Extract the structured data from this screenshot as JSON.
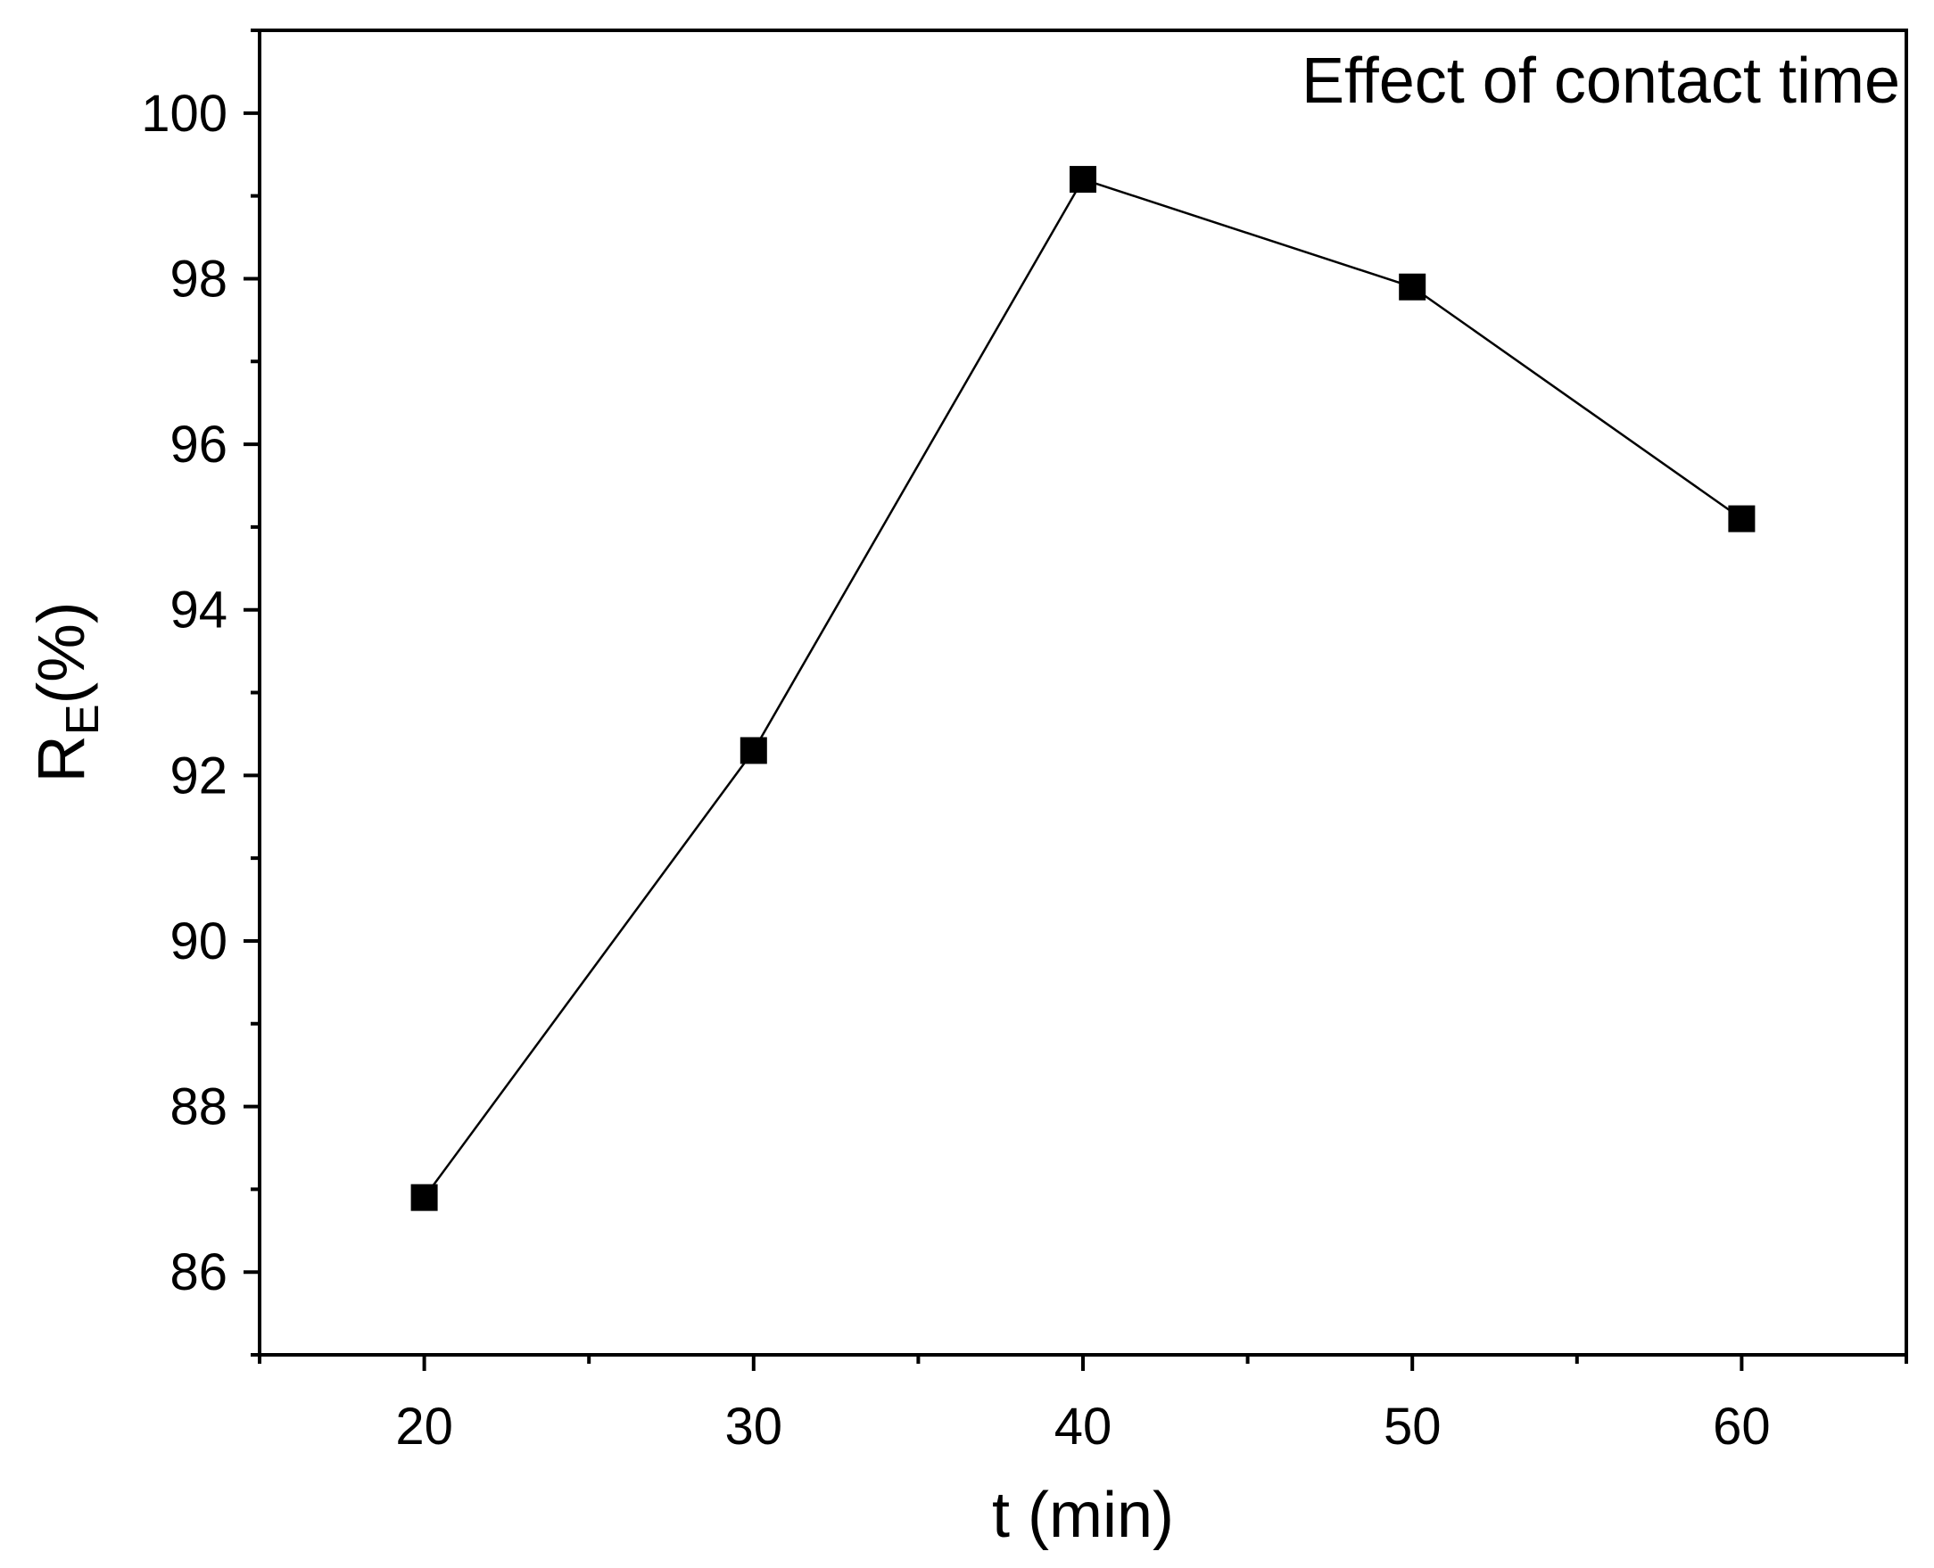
{
  "chart_data": {
    "type": "line",
    "title": "",
    "annotation": "Effect of contact time",
    "xlabel": "t (min)",
    "ylabel": {
      "main": "R",
      "subscript": "E",
      "suffix": "(%)"
    },
    "x": [
      20,
      30,
      40,
      50,
      60
    ],
    "series": [
      {
        "name": "RE",
        "values": [
          86.9,
          92.3,
          99.2,
          97.9,
          95.1
        ],
        "marker": "square",
        "color": "#000000"
      }
    ],
    "xlim": [
      15,
      65
    ],
    "ylim": [
      85,
      101
    ],
    "xticks": [
      "20",
      "30",
      "40",
      "50",
      "60"
    ],
    "yticks": [
      "86",
      "88",
      "90",
      "92",
      "94",
      "96",
      "98",
      "100"
    ],
    "grid": false,
    "legend": "none"
  }
}
